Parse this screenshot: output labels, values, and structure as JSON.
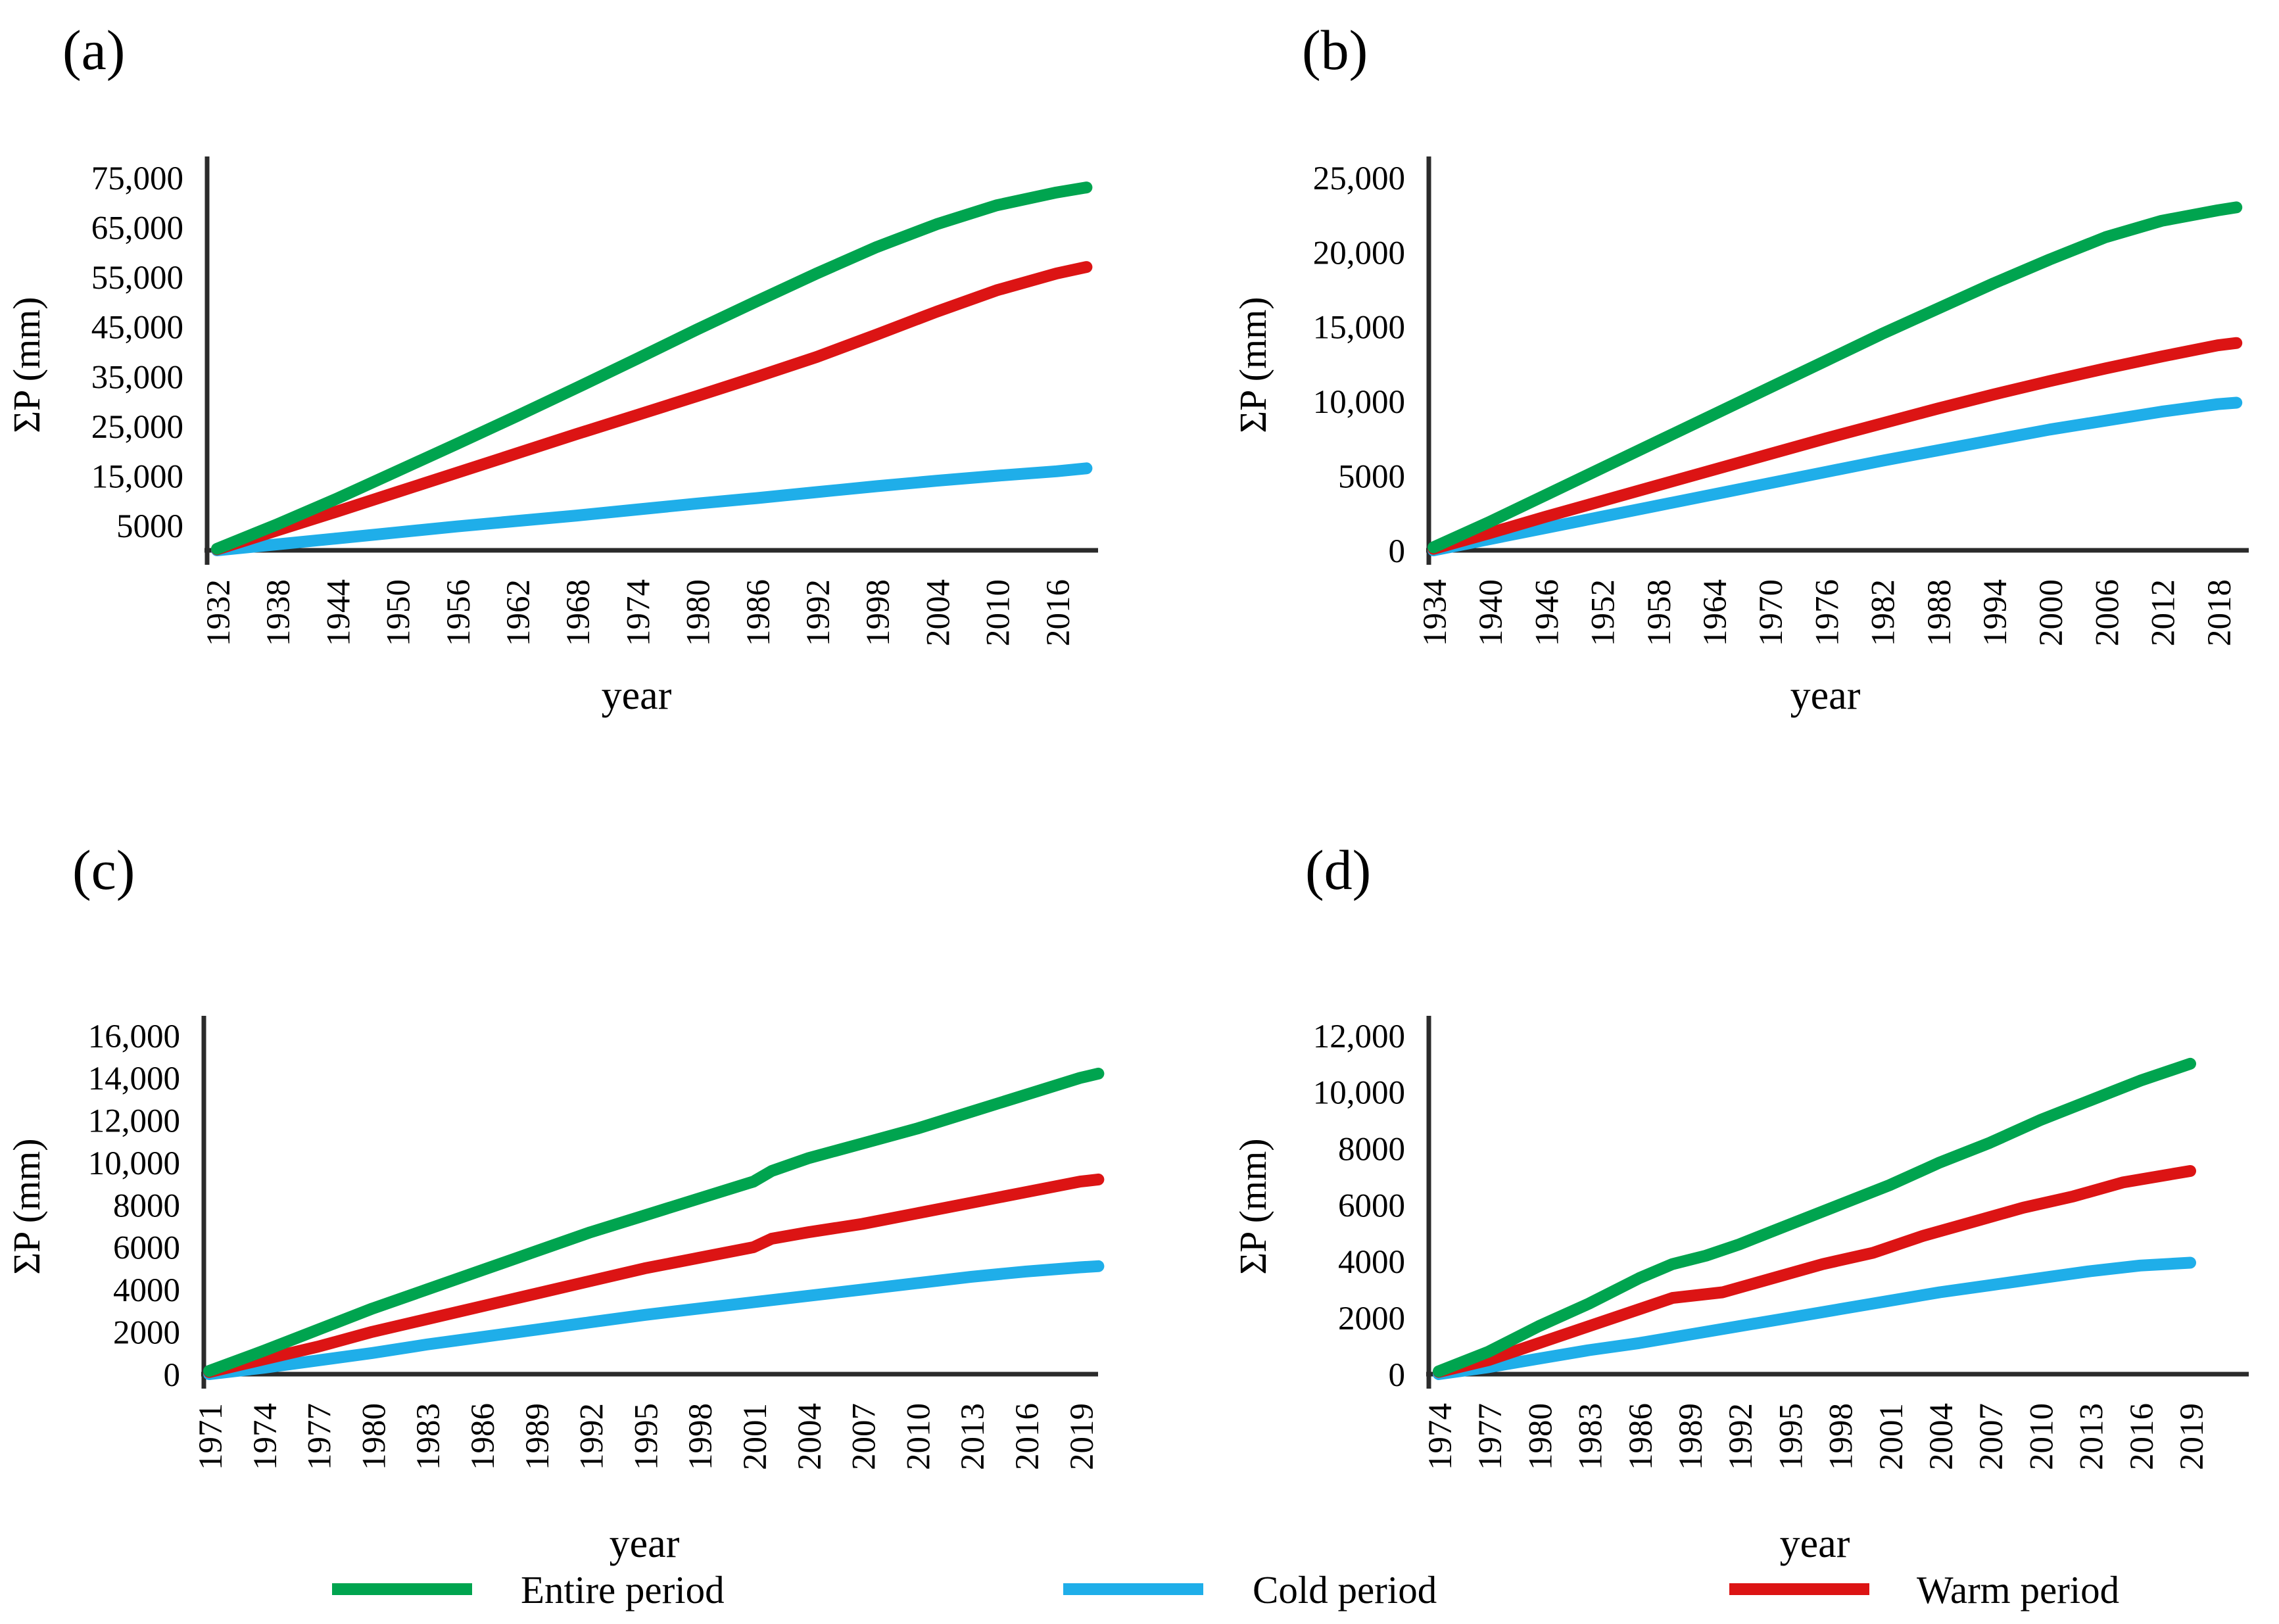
{
  "figure": {
    "colors": {
      "entire": "#00A44F",
      "cold": "#1FAEE9",
      "warm": "#DC1414",
      "axis": "#2B2B2B",
      "text": "#000000"
    },
    "legend": {
      "position": "bottom",
      "items": [
        {
          "key": "entire",
          "label": "Entire period"
        },
        {
          "key": "cold",
          "label": "Cold period"
        },
        {
          "key": "warm",
          "label": "Warm period"
        }
      ]
    }
  },
  "chart_data": [
    {
      "panel": "a",
      "type": "line",
      "title": "(a)",
      "xlabel": "year",
      "ylabel": "ΣP (mm)",
      "grid": false,
      "xlim": [
        1932,
        2019
      ],
      "ylim": [
        0,
        75000
      ],
      "x_ticks": [
        1932,
        1938,
        1944,
        1950,
        1956,
        1962,
        1968,
        1974,
        1980,
        1986,
        1992,
        1998,
        2004,
        2010,
        2016
      ],
      "y_tick_values": [
        75000,
        65000,
        55000,
        45000,
        35000,
        25000,
        15000,
        5000
      ],
      "y_tick_labels": [
        "75,000",
        "65,000",
        "55,000",
        "45,000",
        "35,000",
        "25,000",
        "15,000",
        "5000"
      ],
      "series": [
        {
          "key": "entire",
          "name": "Entire period",
          "points": [
            [
              1932,
              300
            ],
            [
              1938,
              5200
            ],
            [
              1944,
              10400
            ],
            [
              1950,
              15900
            ],
            [
              1956,
              21400
            ],
            [
              1962,
              27000
            ],
            [
              1968,
              32700
            ],
            [
              1974,
              38500
            ],
            [
              1980,
              44400
            ],
            [
              1986,
              50100
            ],
            [
              1992,
              55700
            ],
            [
              1998,
              61000
            ],
            [
              2004,
              65600
            ],
            [
              2010,
              69400
            ],
            [
              2016,
              72000
            ],
            [
              2019,
              73000
            ]
          ]
        },
        {
          "key": "warm",
          "name": "Warm period",
          "points": [
            [
              1932,
              200
            ],
            [
              1938,
              4000
            ],
            [
              1944,
              7800
            ],
            [
              1950,
              11700
            ],
            [
              1956,
              15600
            ],
            [
              1962,
              19500
            ],
            [
              1968,
              23400
            ],
            [
              1974,
              27200
            ],
            [
              1980,
              31000
            ],
            [
              1986,
              34900
            ],
            [
              1992,
              38900
            ],
            [
              1998,
              43400
            ],
            [
              2004,
              48000
            ],
            [
              2010,
              52300
            ],
            [
              2016,
              55700
            ],
            [
              2019,
              57000
            ]
          ]
        },
        {
          "key": "cold",
          "name": "Cold period",
          "points": [
            [
              1932,
              0
            ],
            [
              1938,
              1200
            ],
            [
              1944,
              2400
            ],
            [
              1950,
              3600
            ],
            [
              1956,
              4800
            ],
            [
              1962,
              5900
            ],
            [
              1968,
              7000
            ],
            [
              1974,
              8200
            ],
            [
              1980,
              9400
            ],
            [
              1986,
              10500
            ],
            [
              1992,
              11700
            ],
            [
              1998,
              12900
            ],
            [
              2004,
              14000
            ],
            [
              2010,
              15000
            ],
            [
              2016,
              15900
            ],
            [
              2019,
              16500
            ]
          ]
        }
      ]
    },
    {
      "panel": "b",
      "type": "line",
      "title": "(b)",
      "xlabel": "year",
      "ylabel": "ΣP (mm)",
      "grid": false,
      "xlim": [
        1934,
        2020
      ],
      "ylim": [
        0,
        25000
      ],
      "x_ticks": [
        1934,
        1940,
        1946,
        1952,
        1958,
        1964,
        1970,
        1976,
        1982,
        1988,
        1994,
        2000,
        2006,
        2012,
        2018
      ],
      "y_tick_values": [
        25000,
        20000,
        15000,
        10000,
        5000,
        0
      ],
      "y_tick_labels": [
        "25,000",
        "20,000",
        "15,000",
        "10,000",
        "5000",
        "0"
      ],
      "series": [
        {
          "key": "entire",
          "name": "Entire period",
          "points": [
            [
              1934,
              200
            ],
            [
              1940,
              1900
            ],
            [
              1946,
              3700
            ],
            [
              1952,
              5500
            ],
            [
              1958,
              7300
            ],
            [
              1964,
              9100
            ],
            [
              1970,
              10900
            ],
            [
              1976,
              12700
            ],
            [
              1982,
              14500
            ],
            [
              1988,
              16200
            ],
            [
              1994,
              17900
            ],
            [
              2000,
              19500
            ],
            [
              2006,
              21000
            ],
            [
              2012,
              22100
            ],
            [
              2018,
              22800
            ],
            [
              2020,
              23000
            ]
          ]
        },
        {
          "key": "warm",
          "name": "Warm period",
          "points": [
            [
              1934,
              100
            ],
            [
              1940,
              1150
            ],
            [
              1946,
              2250
            ],
            [
              1952,
              3300
            ],
            [
              1958,
              4350
            ],
            [
              1964,
              5400
            ],
            [
              1970,
              6450
            ],
            [
              1976,
              7500
            ],
            [
              1982,
              8500
            ],
            [
              1988,
              9500
            ],
            [
              1994,
              10450
            ],
            [
              2000,
              11350
            ],
            [
              2006,
              12200
            ],
            [
              2012,
              13000
            ],
            [
              2018,
              13750
            ],
            [
              2020,
              13900
            ]
          ]
        },
        {
          "key": "cold",
          "name": "Cold period",
          "points": [
            [
              1934,
              0
            ],
            [
              1940,
              750
            ],
            [
              1946,
              1500
            ],
            [
              1952,
              2250
            ],
            [
              1958,
              3000
            ],
            [
              1964,
              3750
            ],
            [
              1970,
              4500
            ],
            [
              1976,
              5250
            ],
            [
              1982,
              6000
            ],
            [
              1988,
              6700
            ],
            [
              1994,
              7400
            ],
            [
              2000,
              8100
            ],
            [
              2006,
              8700
            ],
            [
              2012,
              9300
            ],
            [
              2018,
              9800
            ],
            [
              2020,
              9900
            ]
          ]
        }
      ]
    },
    {
      "panel": "c",
      "type": "line",
      "title": "(c)",
      "xlabel": "year",
      "ylabel": "ΣP (mm)",
      "grid": false,
      "xlim": [
        1971,
        2020
      ],
      "ylim": [
        0,
        16000
      ],
      "x_ticks": [
        1971,
        1974,
        1977,
        1980,
        1983,
        1986,
        1989,
        1992,
        1995,
        1998,
        2001,
        2004,
        2007,
        2010,
        2013,
        2016,
        2019
      ],
      "y_tick_values": [
        16000,
        14000,
        12000,
        10000,
        8000,
        6000,
        4000,
        2000,
        0
      ],
      "y_tick_labels": [
        "16,000",
        "14,000",
        "12,000",
        "10,000",
        "8000",
        "6000",
        "4000",
        "2000",
        "0"
      ],
      "series": [
        {
          "key": "entire",
          "name": "Entire period",
          "points": [
            [
              1971,
              150
            ],
            [
              1974,
              1100
            ],
            [
              1977,
              2100
            ],
            [
              1980,
              3100
            ],
            [
              1983,
              4000
            ],
            [
              1986,
              4900
            ],
            [
              1989,
              5800
            ],
            [
              1992,
              6700
            ],
            [
              1995,
              7500
            ],
            [
              1998,
              8300
            ],
            [
              2001,
              9100
            ],
            [
              2002,
              9600
            ],
            [
              2004,
              10200
            ],
            [
              2007,
              10900
            ],
            [
              2010,
              11600
            ],
            [
              2013,
              12400
            ],
            [
              2016,
              13200
            ],
            [
              2019,
              14000
            ],
            [
              2020,
              14200
            ]
          ]
        },
        {
          "key": "warm",
          "name": "Warm period",
          "points": [
            [
              1971,
              100
            ],
            [
              1974,
              700
            ],
            [
              1977,
              1300
            ],
            [
              1980,
              2000
            ],
            [
              1983,
              2600
            ],
            [
              1986,
              3200
            ],
            [
              1989,
              3800
            ],
            [
              1992,
              4400
            ],
            [
              1995,
              5000
            ],
            [
              1998,
              5500
            ],
            [
              2001,
              6000
            ],
            [
              2002,
              6400
            ],
            [
              2004,
              6700
            ],
            [
              2007,
              7100
            ],
            [
              2010,
              7600
            ],
            [
              2013,
              8100
            ],
            [
              2016,
              8600
            ],
            [
              2019,
              9100
            ],
            [
              2020,
              9200
            ]
          ]
        },
        {
          "key": "cold",
          "name": "Cold period",
          "points": [
            [
              1971,
              0
            ],
            [
              1974,
              300
            ],
            [
              1977,
              650
            ],
            [
              1980,
              1000
            ],
            [
              1983,
              1400
            ],
            [
              1986,
              1750
            ],
            [
              1989,
              2100
            ],
            [
              1992,
              2450
            ],
            [
              1995,
              2800
            ],
            [
              1998,
              3100
            ],
            [
              2001,
              3400
            ],
            [
              2004,
              3700
            ],
            [
              2007,
              4000
            ],
            [
              2010,
              4300
            ],
            [
              2013,
              4600
            ],
            [
              2016,
              4850
            ],
            [
              2019,
              5050
            ],
            [
              2020,
              5100
            ]
          ]
        }
      ]
    },
    {
      "panel": "d",
      "type": "line",
      "title": "(d)",
      "xlabel": "year",
      "ylabel": "ΣP (mm)",
      "grid": false,
      "xlim": [
        1974,
        2019
      ],
      "ylim": [
        0,
        12000
      ],
      "x_ticks": [
        1974,
        1977,
        1980,
        1983,
        1986,
        1989,
        1992,
        1995,
        1998,
        2001,
        2004,
        2007,
        2010,
        2013,
        2016,
        2019
      ],
      "y_tick_values": [
        12000,
        10000,
        8000,
        6000,
        4000,
        2000,
        0
      ],
      "y_tick_labels": [
        "12,000",
        "10,000",
        "8000",
        "6000",
        "4000",
        "2000",
        "0"
      ],
      "series": [
        {
          "key": "entire",
          "name": "Entire period",
          "points": [
            [
              1974,
              100
            ],
            [
              1977,
              800
            ],
            [
              1980,
              1700
            ],
            [
              1983,
              2500
            ],
            [
              1986,
              3400
            ],
            [
              1988,
              3900
            ],
            [
              1990,
              4200
            ],
            [
              1992,
              4600
            ],
            [
              1995,
              5300
            ],
            [
              1998,
              6000
            ],
            [
              2001,
              6700
            ],
            [
              2004,
              7500
            ],
            [
              2007,
              8200
            ],
            [
              2010,
              9000
            ],
            [
              2013,
              9700
            ],
            [
              2016,
              10400
            ],
            [
              2019,
              11000
            ]
          ]
        },
        {
          "key": "warm",
          "name": "Warm period",
          "points": [
            [
              1974,
              80
            ],
            [
              1977,
              500
            ],
            [
              1980,
              1100
            ],
            [
              1983,
              1700
            ],
            [
              1986,
              2300
            ],
            [
              1988,
              2700
            ],
            [
              1991,
              2900
            ],
            [
              1994,
              3400
            ],
            [
              1997,
              3900
            ],
            [
              2000,
              4300
            ],
            [
              2003,
              4900
            ],
            [
              2006,
              5400
            ],
            [
              2009,
              5900
            ],
            [
              2012,
              6300
            ],
            [
              2015,
              6800
            ],
            [
              2018,
              7100
            ],
            [
              2019,
              7200
            ]
          ]
        },
        {
          "key": "cold",
          "name": "Cold period",
          "points": [
            [
              1974,
              0
            ],
            [
              1977,
              250
            ],
            [
              1980,
              550
            ],
            [
              1983,
              850
            ],
            [
              1986,
              1100
            ],
            [
              1989,
              1400
            ],
            [
              1992,
              1700
            ],
            [
              1995,
              2000
            ],
            [
              1998,
              2300
            ],
            [
              2001,
              2600
            ],
            [
              2004,
              2900
            ],
            [
              2007,
              3150
            ],
            [
              2010,
              3400
            ],
            [
              2013,
              3650
            ],
            [
              2016,
              3850
            ],
            [
              2019,
              3950
            ]
          ]
        }
      ]
    }
  ]
}
